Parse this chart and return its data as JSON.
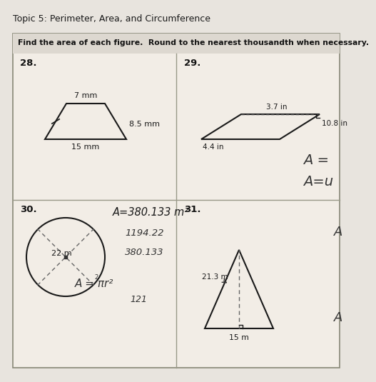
{
  "title": "Topic 5: Perimeter, Area, and Circumference",
  "instruction": "Find the area of each figure.  Round to the nearest thousandth when necessary.",
  "bg_color": "#e8e4de",
  "box_color": "#f2ede6",
  "problem_numbers": [
    "28.",
    "29.",
    "30.",
    "31."
  ],
  "trap_top": "7 mm",
  "trap_side": "8.5 mm",
  "trap_bottom": "15 mm",
  "para_top": "3.7 in",
  "para_side": "10.8 in",
  "para_bottom": "4.4 in",
  "circle_label": "22 m",
  "circle_answer": "A=380.133 m²",
  "circle_work1": "1194.22",
  "circle_work2": "380.133",
  "circle_formula": "A = πr²",
  "circle_r2": "121",
  "tri_side": "21.3 m",
  "tri_bottom": "15 m",
  "anno_A_eq": "A =",
  "anno_A_eq2": "A=u",
  "anno_A31": "A",
  "anno_A31b": "A"
}
